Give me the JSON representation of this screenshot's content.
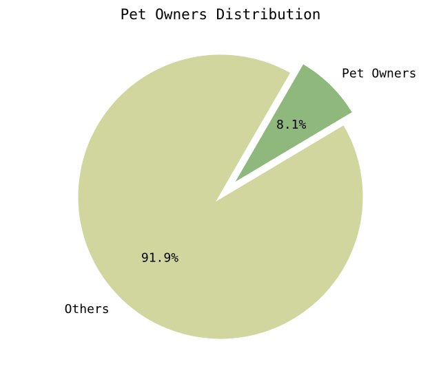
{
  "chart_data": {
    "type": "pie",
    "title": "Pet Owners Distribution",
    "slices": [
      {
        "label": "Pet Owners",
        "value": 8.1,
        "display": "8.1%",
        "color": "#8fb87d",
        "exploded": true
      },
      {
        "label": "Others",
        "value": 91.9,
        "display": "91.9%",
        "color": "#d1d69f",
        "exploded": false
      }
    ],
    "start_angle_deg": 60,
    "direction": "clockwise",
    "edge_color": "#ffffff",
    "legend": "none"
  }
}
